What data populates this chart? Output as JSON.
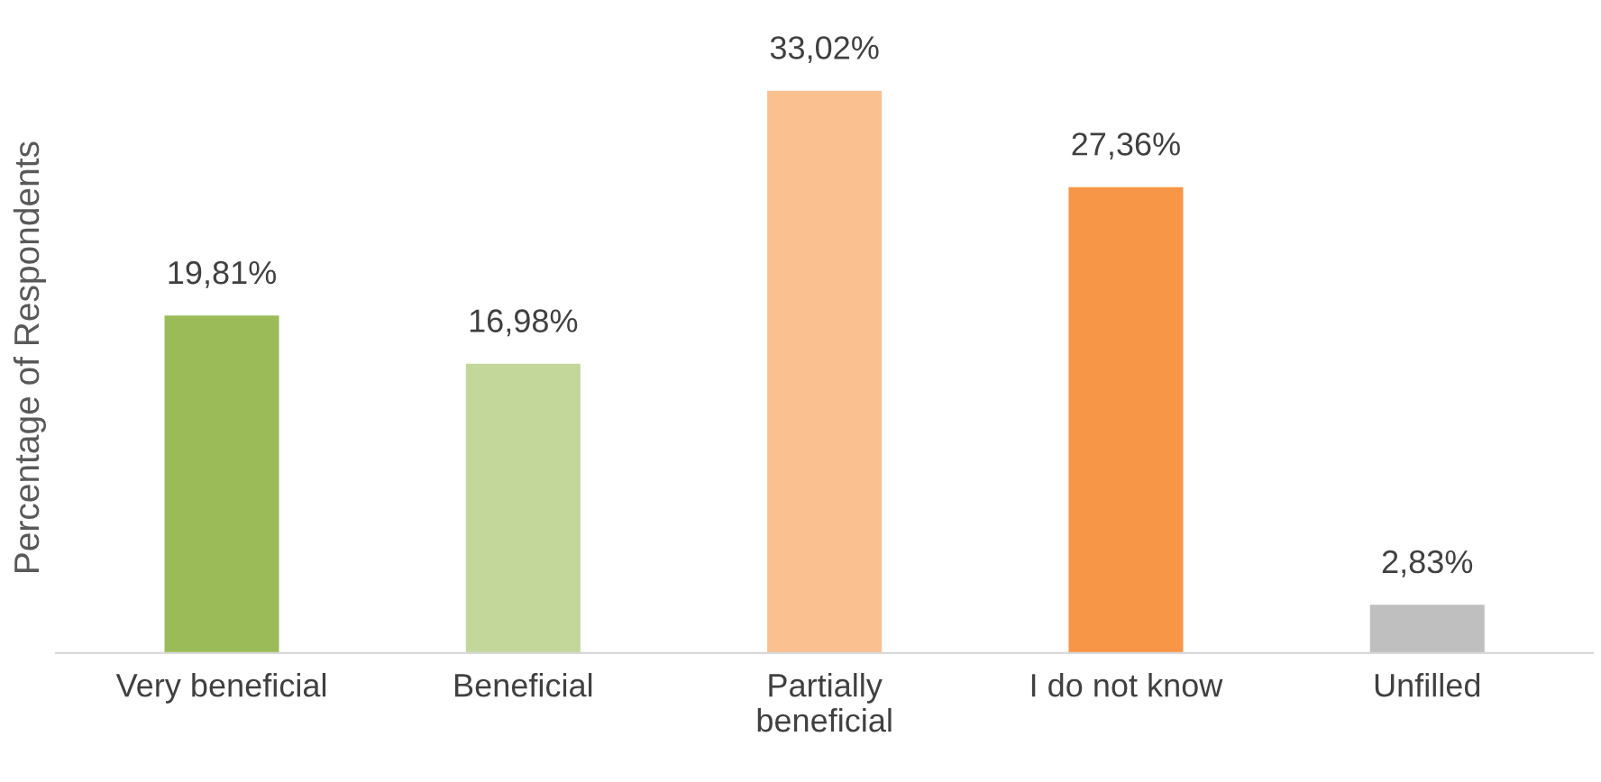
{
  "chart_data": {
    "type": "bar",
    "ylabel": "Percentage of Respondents",
    "categories": [
      "Very beneficial",
      "Beneficial",
      "Partially\nbeneficial",
      "I do not know",
      "Unfilled"
    ],
    "values": [
      19.81,
      16.98,
      33.02,
      27.36,
      2.83
    ],
    "value_labels": [
      "19,81%",
      "16,98%",
      "33,02%",
      "27,36%",
      "2,83%"
    ],
    "colors": [
      "#9bbb59",
      "#c4d79b",
      "#fac090",
      "#f79646",
      "#bfbfbf"
    ],
    "grid": false,
    "legend": false
  }
}
